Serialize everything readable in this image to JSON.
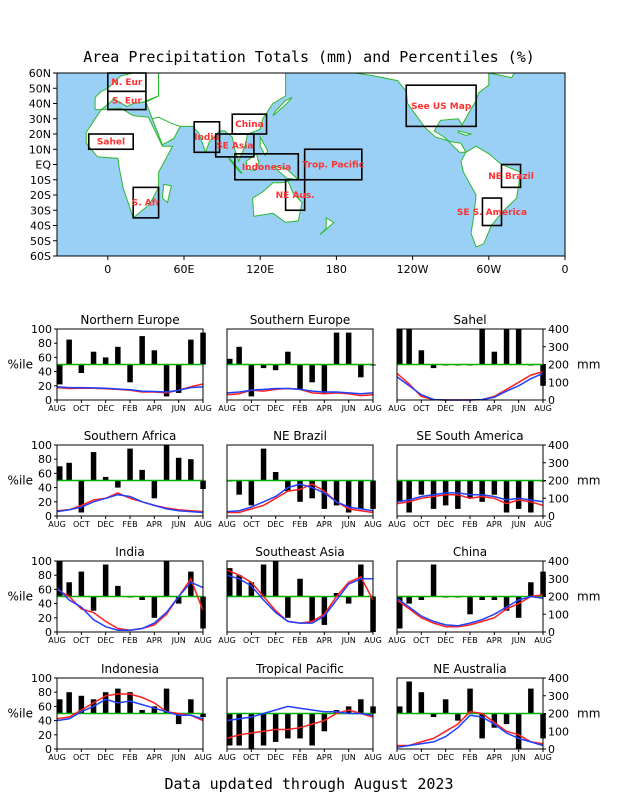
{
  "title": "Area Precipitation Totals (mm) and Percentiles (%)",
  "footer": "Data updated through August 2023",
  "colors": {
    "ocean": "#9ad0f5",
    "land": "#ffffff",
    "coast": "#2bb82b",
    "box": "#000000",
    "region_label": "#ff3030",
    "bar": "#000000",
    "line_50": "#00b000",
    "series_1": "#ff2020",
    "series_2": "#2040ff"
  },
  "map": {
    "y_ticks": [
      "60N",
      "50N",
      "40N",
      "30N",
      "20N",
      "10N",
      "EQ",
      "10S",
      "20S",
      "30S",
      "40S",
      "50S",
      "60S"
    ],
    "x_ticks": [
      "0",
      "60E",
      "120E",
      "180",
      "120W",
      "60W",
      "0"
    ],
    "regions": [
      {
        "label": "N. Eur",
        "lon": [
          0,
          30
        ],
        "lat": [
          48,
          60
        ]
      },
      {
        "label": "S. Eur",
        "lon": [
          0,
          30
        ],
        "lat": [
          36,
          48
        ]
      },
      {
        "label": "Sahel",
        "lon": [
          -15,
          20
        ],
        "lat": [
          10,
          20
        ]
      },
      {
        "label": "India",
        "lon": [
          68,
          88
        ],
        "lat": [
          8,
          28
        ]
      },
      {
        "label": "China",
        "lon": [
          98,
          125
        ],
        "lat": [
          20,
          33
        ]
      },
      {
        "label": "SE Asia",
        "lon": [
          85,
          115
        ],
        "lat": [
          5,
          20
        ]
      },
      {
        "label": "Indonesia",
        "lon": [
          100,
          150
        ],
        "lat": [
          -10,
          7
        ]
      },
      {
        "label": "Trop. Pacific",
        "lon": [
          155,
          200
        ],
        "lat": [
          -10,
          10
        ]
      },
      {
        "label": "NE Aus.",
        "lon": [
          140,
          155
        ],
        "lat": [
          -30,
          -10
        ]
      },
      {
        "label": "S. Afr",
        "lon": [
          20,
          40
        ],
        "lat": [
          -35,
          -15
        ]
      },
      {
        "label": "See US Map",
        "lon": [
          235,
          290
        ],
        "lat": [
          25,
          52
        ]
      },
      {
        "label": "NE Brazil",
        "lon": [
          310,
          325
        ],
        "lat": [
          -15,
          0
        ]
      },
      {
        "label": "SE S. America",
        "lon": [
          295,
          310
        ],
        "lat": [
          -40,
          -22
        ]
      }
    ]
  },
  "panel_axes": {
    "left_ticks": [
      "0",
      "20",
      "40",
      "60",
      "80",
      "100"
    ],
    "left_label": "%ile",
    "right_ticks": [
      "0",
      "100",
      "200",
      "300",
      "400"
    ],
    "right_label": "mm",
    "x_ticks": [
      "AUG",
      "OCT",
      "DEC",
      "FEB",
      "APR",
      "JUN",
      "AUG"
    ]
  },
  "chart_data": [
    {
      "type": "bar",
      "title": "Northern Europe",
      "categories": [
        "AUG",
        "SEP",
        "OCT",
        "NOV",
        "DEC",
        "JAN",
        "FEB",
        "MAR",
        "APR",
        "MAY",
        "JUN",
        "JUL",
        "AUG"
      ],
      "series": [
        {
          "name": "percentile",
          "values": [
            22,
            85,
            38,
            68,
            60,
            75,
            25,
            90,
            70,
            5,
            10,
            85,
            95
          ]
        }
      ],
      "lines": {
        "series_1": [
          70,
          65,
          67,
          66,
          63,
          60,
          55,
          45,
          45,
          40,
          55,
          75,
          90
        ],
        "series_2": [
          75,
          70,
          70,
          68,
          66,
          62,
          58,
          50,
          48,
          45,
          55,
          70,
          75
        ]
      },
      "ylim": [
        0,
        100
      ],
      "y2lim": [
        0,
        400
      ]
    },
    {
      "type": "bar",
      "title": "Southern Europe",
      "categories": [
        "AUG",
        "SEP",
        "OCT",
        "NOV",
        "DEC",
        "JAN",
        "FEB",
        "MAR",
        "APR",
        "MAY",
        "JUN",
        "JUL",
        "AUG"
      ],
      "series": [
        {
          "name": "percentile",
          "values": [
            58,
            75,
            5,
            45,
            42,
            68,
            15,
            25,
            10,
            95,
            95,
            32,
            50
          ]
        }
      ],
      "lines": {
        "series_1": [
          30,
          35,
          55,
          50,
          60,
          65,
          60,
          40,
          35,
          40,
          35,
          25,
          30
        ],
        "series_2": [
          40,
          45,
          55,
          60,
          65,
          65,
          60,
          50,
          45,
          45,
          40,
          35,
          40
        ]
      },
      "ylim": [
        0,
        100
      ],
      "y2lim": [
        0,
        400
      ]
    },
    {
      "type": "bar",
      "title": "Sahel",
      "categories": [
        "AUG",
        "SEP",
        "OCT",
        "NOV",
        "DEC",
        "JAN",
        "FEB",
        "MAR",
        "APR",
        "MAY",
        "JUN",
        "JUL",
        "AUG"
      ],
      "series": [
        {
          "name": "percentile",
          "values": [
            100,
            100,
            70,
            45,
            50,
            50,
            50,
            100,
            68,
            100,
            100,
            50,
            20
          ]
        }
      ],
      "lines": {
        "series_1": [
          150,
          90,
          20,
          2,
          0,
          0,
          0,
          2,
          20,
          60,
          100,
          140,
          160
        ],
        "series_2": [
          130,
          80,
          30,
          3,
          0,
          0,
          0,
          3,
          15,
          50,
          80,
          120,
          150
        ]
      },
      "ylim": [
        0,
        100
      ],
      "y2lim": [
        0,
        400
      ]
    },
    {
      "type": "bar",
      "title": "Southern Africa",
      "categories": [
        "AUG",
        "SEP",
        "OCT",
        "NOV",
        "DEC",
        "JAN",
        "FEB",
        "MAR",
        "APR",
        "MAY",
        "JUN",
        "JUL",
        "AUG"
      ],
      "series": [
        {
          "name": "percentile",
          "values": [
            70,
            75,
            5,
            90,
            55,
            40,
            95,
            65,
            25,
            100,
            82,
            80,
            38
          ]
        }
      ],
      "lines": {
        "series_1": [
          30,
          35,
          60,
          90,
          100,
          130,
          100,
          80,
          60,
          45,
          35,
          30,
          25
        ],
        "series_2": [
          25,
          35,
          50,
          80,
          100,
          120,
          110,
          80,
          60,
          40,
          30,
          25,
          20
        ]
      },
      "ylim": [
        0,
        100
      ],
      "y2lim": [
        0,
        400
      ]
    },
    {
      "type": "bar",
      "title": "NE Brazil",
      "categories": [
        "AUG",
        "SEP",
        "OCT",
        "NOV",
        "DEC",
        "JAN",
        "FEB",
        "MAR",
        "APR",
        "MAY",
        "JUN",
        "JUL",
        "AUG"
      ],
      "series": [
        {
          "name": "percentile",
          "values": [
            50,
            30,
            15,
            95,
            62,
            35,
            20,
            25,
            10,
            15,
            5,
            10,
            10
          ]
        }
      ],
      "lines": {
        "series_1": [
          20,
          20,
          40,
          60,
          100,
          140,
          150,
          180,
          140,
          80,
          40,
          30,
          20
        ],
        "series_2": [
          25,
          30,
          50,
          80,
          110,
          160,
          180,
          160,
          130,
          80,
          50,
          40,
          30
        ]
      },
      "ylim": [
        0,
        100
      ],
      "y2lim": [
        0,
        400
      ]
    },
    {
      "type": "bar",
      "title": "SE South America",
      "categories": [
        "AUG",
        "SEP",
        "OCT",
        "NOV",
        "DEC",
        "JAN",
        "FEB",
        "MAR",
        "APR",
        "MAY",
        "JUN",
        "JUL",
        "AUG"
      ],
      "series": [
        {
          "name": "percentile",
          "values": [
            20,
            5,
            30,
            10,
            15,
            10,
            25,
            20,
            30,
            5,
            10,
            5,
            50
          ]
        }
      ],
      "lines": {
        "series_1": [
          70,
          80,
          100,
          110,
          120,
          120,
          100,
          110,
          100,
          70,
          90,
          80,
          60
        ],
        "series_2": [
          80,
          90,
          110,
          120,
          130,
          130,
          120,
          120,
          110,
          90,
          100,
          90,
          80
        ]
      },
      "ylim": [
        0,
        100
      ],
      "y2lim": [
        0,
        400
      ]
    },
    {
      "type": "bar",
      "title": "India",
      "categories": [
        "AUG",
        "SEP",
        "OCT",
        "NOV",
        "DEC",
        "JAN",
        "FEB",
        "MAR",
        "APR",
        "MAY",
        "JUN",
        "JUL",
        "AUG"
      ],
      "series": [
        {
          "name": "percentile",
          "values": [
            100,
            70,
            85,
            30,
            95,
            65,
            50,
            45,
            20,
            100,
            40,
            85,
            5
          ]
        }
      ],
      "lines": {
        "series_1": [
          240,
          200,
          130,
          110,
          60,
          20,
          10,
          20,
          40,
          100,
          200,
          300,
          120
        ],
        "series_2": [
          250,
          180,
          140,
          70,
          30,
          10,
          10,
          20,
          50,
          110,
          200,
          280,
          250
        ]
      },
      "ylim": [
        0,
        100
      ],
      "y2lim": [
        0,
        400
      ]
    },
    {
      "type": "bar",
      "title": "Southeast Asia",
      "categories": [
        "AUG",
        "SEP",
        "OCT",
        "NOV",
        "DEC",
        "JAN",
        "FEB",
        "MAR",
        "APR",
        "MAY",
        "JUN",
        "JUL",
        "AUG"
      ],
      "series": [
        {
          "name": "percentile",
          "values": [
            90,
            80,
            70,
            95,
            100,
            20,
            75,
            15,
            10,
            55,
            40,
            95,
            0
          ]
        }
      ],
      "lines": {
        "series_1": [
          350,
          320,
          280,
          200,
          120,
          60,
          50,
          60,
          100,
          200,
          280,
          310,
          180
        ],
        "series_2": [
          320,
          300,
          260,
          180,
          110,
          60,
          50,
          50,
          90,
          180,
          270,
          300,
          300
        ]
      },
      "ylim": [
        0,
        100
      ],
      "y2lim": [
        0,
        400
      ]
    },
    {
      "type": "bar",
      "title": "China",
      "categories": [
        "AUG",
        "SEP",
        "OCT",
        "NOV",
        "DEC",
        "JAN",
        "FEB",
        "MAR",
        "APR",
        "MAY",
        "JUN",
        "JUL",
        "AUG"
      ],
      "series": [
        {
          "name": "percentile",
          "values": [
            5,
            40,
            45,
            95,
            50,
            50,
            25,
            45,
            45,
            30,
            20,
            70,
            85
          ]
        }
      ],
      "lines": {
        "series_1": [
          180,
          130,
          80,
          50,
          30,
          30,
          40,
          60,
          80,
          130,
          160,
          200,
          210
        ],
        "series_2": [
          190,
          140,
          90,
          60,
          40,
          35,
          50,
          70,
          100,
          140,
          180,
          200,
          190
        ]
      },
      "ylim": [
        0,
        100
      ],
      "y2lim": [
        0,
        400
      ]
    },
    {
      "type": "bar",
      "title": "Indonesia",
      "categories": [
        "AUG",
        "SEP",
        "OCT",
        "NOV",
        "DEC",
        "JAN",
        "FEB",
        "MAR",
        "APR",
        "MAY",
        "JUN",
        "JUL",
        "AUG"
      ],
      "series": [
        {
          "name": "percentile",
          "values": [
            70,
            80,
            75,
            70,
            80,
            85,
            80,
            55,
            60,
            85,
            35,
            70,
            45
          ]
        }
      ],
      "lines": {
        "series_1": [
          170,
          180,
          220,
          260,
          300,
          310,
          310,
          290,
          260,
          210,
          200,
          190,
          160
        ],
        "series_2": [
          160,
          170,
          210,
          240,
          280,
          260,
          270,
          250,
          230,
          210,
          190,
          190,
          170
        ]
      },
      "ylim": [
        0,
        100
      ],
      "y2lim": [
        0,
        400
      ]
    },
    {
      "type": "bar",
      "title": "Tropical Pacific",
      "categories": [
        "AUG",
        "SEP",
        "OCT",
        "NOV",
        "DEC",
        "JAN",
        "FEB",
        "MAR",
        "APR",
        "MAY",
        "JUN",
        "JUL",
        "AUG"
      ],
      "series": [
        {
          "name": "percentile",
          "values": [
            5,
            5,
            0,
            5,
            10,
            15,
            15,
            5,
            25,
            55,
            60,
            70,
            60
          ]
        }
      ],
      "lines": {
        "series_1": [
          60,
          80,
          90,
          100,
          110,
          110,
          120,
          140,
          160,
          200,
          220,
          200,
          180
        ],
        "series_2": [
          160,
          170,
          180,
          200,
          220,
          240,
          230,
          220,
          210,
          210,
          200,
          200,
          190
        ]
      },
      "ylim": [
        0,
        100
      ],
      "y2lim": [
        0,
        400
      ]
    },
    {
      "type": "bar",
      "title": "NE Australia",
      "categories": [
        "AUG",
        "SEP",
        "OCT",
        "NOV",
        "DEC",
        "JAN",
        "FEB",
        "MAR",
        "APR",
        "MAY",
        "JUN",
        "JUL",
        "AUG"
      ],
      "series": [
        {
          "name": "percentile",
          "values": [
            60,
            95,
            80,
            45,
            70,
            40,
            85,
            15,
            30,
            35,
            0,
            85,
            15
          ]
        }
      ],
      "lines": {
        "series_1": [
          20,
          20,
          40,
          60,
          100,
          140,
          210,
          200,
          150,
          100,
          80,
          40,
          30
        ],
        "series_2": [
          10,
          20,
          30,
          40,
          70,
          120,
          190,
          180,
          140,
          90,
          60,
          40,
          20
        ]
      },
      "ylim": [
        0,
        100
      ],
      "y2lim": [
        0,
        400
      ]
    }
  ]
}
